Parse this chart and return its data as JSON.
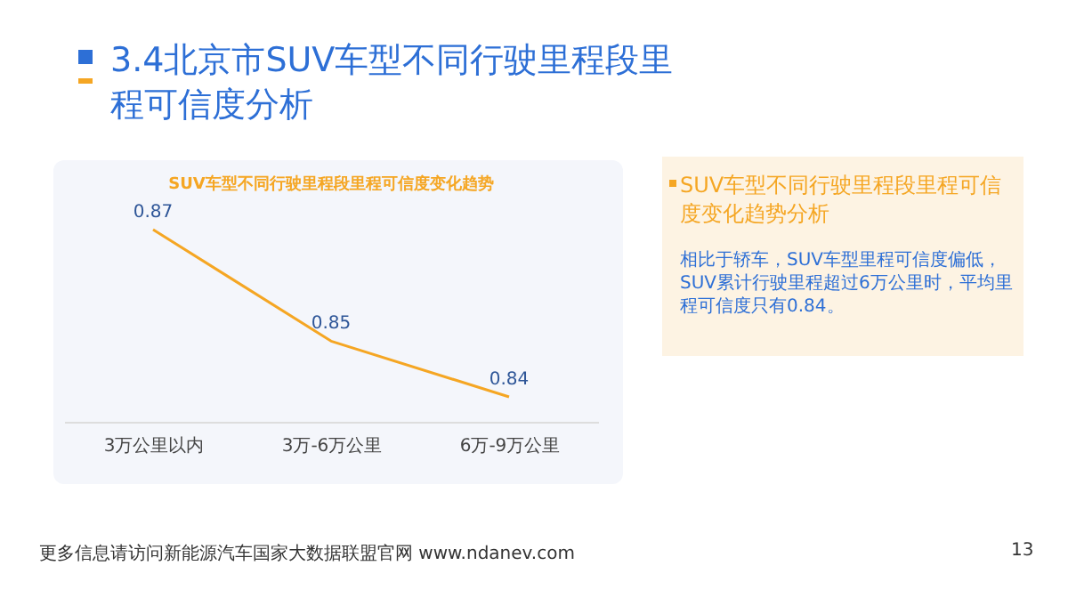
{
  "chart_data": {
    "type": "line",
    "title": "3.4北京市SUV车型不同行驶里程段里程可信度分析",
    "subtitle": "SUV车型不同行驶里程段里程可信度变化趋势",
    "categories": [
      "3万公里以内",
      "3万-6万公里",
      "6万-9万公里"
    ],
    "values": [
      0.87,
      0.85,
      0.84
    ],
    "color": "#f5a623",
    "data_labels": true,
    "annotations": [
      "SUV车型不同行驶里程段里程可信度变化趋势分析",
      "相比于轿车，SUV车型里程可信度偏低，SUV累计行驶里程超过6万公里时，平均里程可信度只有0.84。",
      "更多信息请访问新能源汽车国家大数据联盟官网 www.ndanev.com",
      "13"
    ]
  }
}
